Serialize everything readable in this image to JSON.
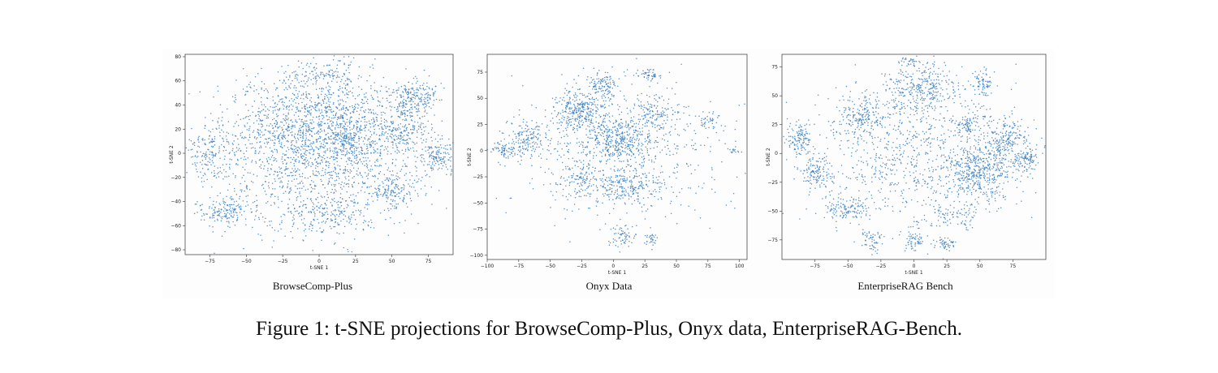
{
  "figure_caption": "Figure 1: t-SNE projections for BrowseComp-Plus, Onyx data, EnterpriseRAG-Bench.",
  "colors": {
    "point": "#3a7fc1",
    "axes": "#333333"
  },
  "chart_data": [
    {
      "type": "scatter",
      "subtitle": "BrowseComp-Plus",
      "xlabel": "t-SNE 1",
      "ylabel": "t-SNE 2",
      "xlim": [
        -92,
        92
      ],
      "ylim": [
        -84,
        82
      ],
      "xticks": [
        -75,
        -50,
        -25,
        0,
        25,
        50,
        75
      ],
      "yticks": [
        -80,
        -60,
        -40,
        -20,
        0,
        20,
        40,
        60,
        80
      ],
      "points_approx": 3500,
      "clusters": [
        {
          "x": 0,
          "y": 0,
          "sx": 36,
          "sy": 30,
          "n": 1500
        },
        {
          "x": -20,
          "y": 30,
          "sx": 20,
          "sy": 18,
          "n": 350
        },
        {
          "x": 15,
          "y": 35,
          "sx": 16,
          "sy": 16,
          "n": 250
        },
        {
          "x": 65,
          "y": 45,
          "sx": 8,
          "sy": 8,
          "n": 230
        },
        {
          "x": 55,
          "y": 18,
          "sx": 10,
          "sy": 9,
          "n": 200
        },
        {
          "x": 82,
          "y": -2,
          "sx": 6,
          "sy": 8,
          "n": 140
        },
        {
          "x": 52,
          "y": -30,
          "sx": 8,
          "sy": 8,
          "n": 140
        },
        {
          "x": -75,
          "y": 2,
          "sx": 8,
          "sy": 12,
          "n": 160
        },
        {
          "x": -65,
          "y": -48,
          "sx": 10,
          "sy": 6,
          "n": 160
        },
        {
          "x": 0,
          "y": 66,
          "sx": 12,
          "sy": 5,
          "n": 90
        },
        {
          "x": 20,
          "y": 12,
          "sx": 8,
          "sy": 8,
          "n": 150
        },
        {
          "x": 10,
          "y": -52,
          "sx": 20,
          "sy": 8,
          "n": 180
        }
      ]
    },
    {
      "type": "scatter",
      "subtitle": "Onyx Data",
      "xlabel": "t-SNE 1",
      "ylabel": "t-SNE 2",
      "xlim": [
        -100,
        106
      ],
      "ylim": [
        -104,
        92
      ],
      "xticks": [
        -100,
        -75,
        -50,
        -25,
        0,
        25,
        50,
        75,
        100
      ],
      "yticks": [
        -100,
        -75,
        -50,
        -25,
        0,
        25,
        50,
        75
      ],
      "points_approx": 2400,
      "clusters": [
        {
          "x": -25,
          "y": 38,
          "sx": 10,
          "sy": 10,
          "n": 300
        },
        {
          "x": 5,
          "y": 10,
          "sx": 12,
          "sy": 10,
          "n": 320
        },
        {
          "x": -8,
          "y": 62,
          "sx": 6,
          "sy": 6,
          "n": 110
        },
        {
          "x": -70,
          "y": 10,
          "sx": 8,
          "sy": 8,
          "n": 140
        },
        {
          "x": -88,
          "y": 0,
          "sx": 4,
          "sy": 4,
          "n": 60
        },
        {
          "x": 10,
          "y": -35,
          "sx": 15,
          "sy": 8,
          "n": 200
        },
        {
          "x": -25,
          "y": -28,
          "sx": 8,
          "sy": 8,
          "n": 80
        },
        {
          "x": 35,
          "y": 35,
          "sx": 10,
          "sy": 10,
          "n": 120
        },
        {
          "x": 28,
          "y": 72,
          "sx": 5,
          "sy": 3,
          "n": 50
        },
        {
          "x": 0,
          "y": 0,
          "sx": 45,
          "sy": 35,
          "n": 700
        },
        {
          "x": 8,
          "y": -82,
          "sx": 5,
          "sy": 6,
          "n": 60
        },
        {
          "x": 30,
          "y": -85,
          "sx": 3,
          "sy": 3,
          "n": 30
        },
        {
          "x": 75,
          "y": 28,
          "sx": 5,
          "sy": 4,
          "n": 30
        },
        {
          "x": 95,
          "y": 0,
          "sx": 3,
          "sy": 2,
          "n": 15
        }
      ]
    },
    {
      "type": "scatter",
      "subtitle": "EnterpriseRAG Bench",
      "xlabel": "t-SNE 1",
      "ylabel": "t-SNE 2",
      "xlim": [
        -100,
        100
      ],
      "ylim": [
        -92,
        86
      ],
      "xticks": [
        -75,
        -50,
        -25,
        0,
        25,
        50,
        75
      ],
      "yticks": [
        -75,
        -50,
        -25,
        0,
        25,
        50,
        75
      ],
      "points_approx": 3000,
      "clusters": [
        {
          "x": 5,
          "y": 55,
          "sx": 14,
          "sy": 12,
          "n": 320
        },
        {
          "x": -40,
          "y": 33,
          "sx": 10,
          "sy": 10,
          "n": 180
        },
        {
          "x": 50,
          "y": -15,
          "sx": 14,
          "sy": 14,
          "n": 450
        },
        {
          "x": 70,
          "y": 15,
          "sx": 8,
          "sy": 8,
          "n": 160
        },
        {
          "x": 85,
          "y": -5,
          "sx": 5,
          "sy": 5,
          "n": 110
        },
        {
          "x": -87,
          "y": 12,
          "sx": 5,
          "sy": 8,
          "n": 120
        },
        {
          "x": -75,
          "y": -18,
          "sx": 7,
          "sy": 7,
          "n": 120
        },
        {
          "x": -50,
          "y": -48,
          "sx": 9,
          "sy": 5,
          "n": 120
        },
        {
          "x": 0,
          "y": 0,
          "sx": 40,
          "sy": 30,
          "n": 850
        },
        {
          "x": 40,
          "y": 25,
          "sx": 4,
          "sy": 4,
          "n": 70
        },
        {
          "x": 52,
          "y": 60,
          "sx": 4,
          "sy": 6,
          "n": 70
        },
        {
          "x": -30,
          "y": -75,
          "sx": 5,
          "sy": 5,
          "n": 60
        },
        {
          "x": 0,
          "y": -75,
          "sx": 4,
          "sy": 4,
          "n": 60
        },
        {
          "x": 25,
          "y": -78,
          "sx": 4,
          "sy": 3,
          "n": 50
        },
        {
          "x": 30,
          "y": -55,
          "sx": 12,
          "sy": 6,
          "n": 80
        },
        {
          "x": -2,
          "y": 80,
          "sx": 5,
          "sy": 2,
          "n": 30
        }
      ]
    }
  ]
}
